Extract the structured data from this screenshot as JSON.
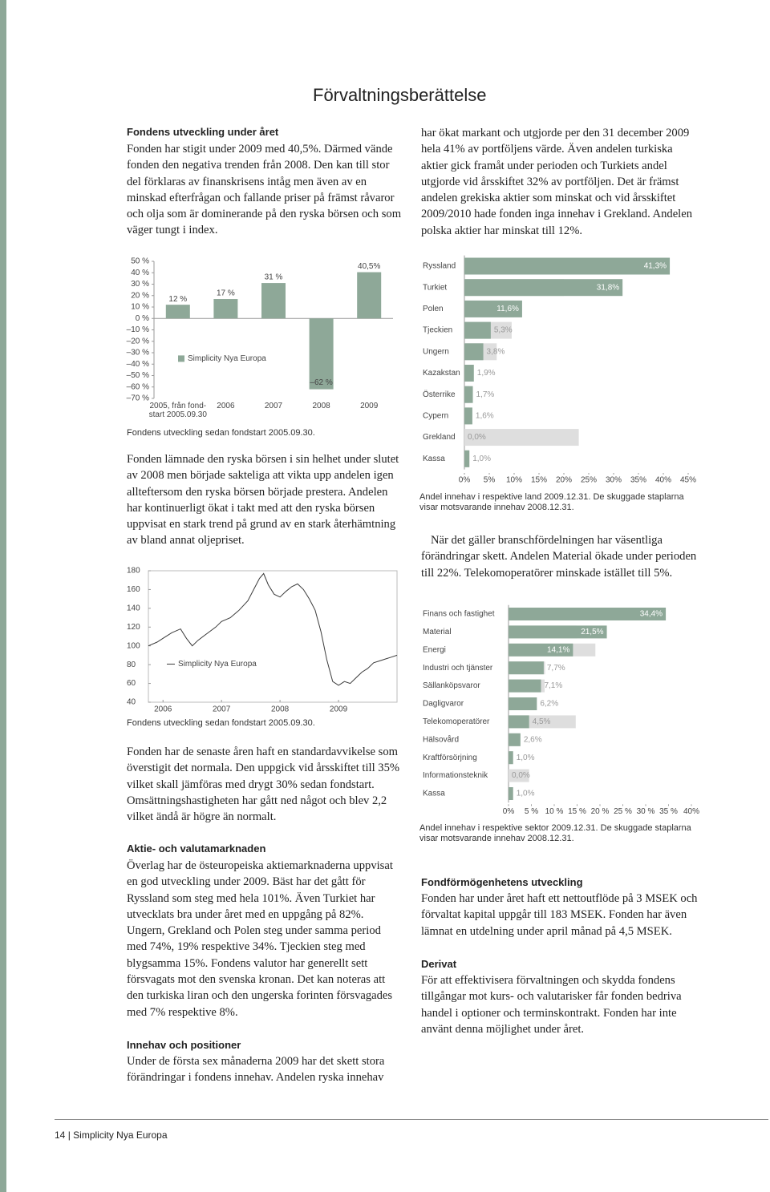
{
  "header": {
    "title": "Förvaltningsberättelse"
  },
  "sections": [
    {
      "heading": "Fondens utveckling under året",
      "text": "Fonden har stigit under 2009 med 40,5%. Därmed vände fonden den negativa trenden från 2008. Den kan till stor del förklaras av finanskrisens intåg men även av en minskad efterfrågan och fallande priser på främst råvaror och olja som är dominerande på den ryska börsen och som väger tungt i index."
    },
    {
      "text": "har ökat markant och utgjorde per den 31 december 2009 hela 41% av portföljens värde. Även andelen turkiska aktier gick framåt under perioden och Turkiets andel utgjorde vid årsskiftet 32% av portföljen. Det är främst andelen grekiska aktier som minskat och vid årsskiftet 2009/2010 hade fonden inga innehav i Grekland. Andelen polska aktier har minskat till 12%."
    },
    {
      "text": "Fonden lämnade den ryska börsen i sin helhet under slutet av 2008 men började sakteliga att vikta upp andelen igen alltefter­som den ryska börsen började prestera. Andelen har kontinuerligt ökat i takt med att den ryska börsen uppvisat en stark trend på grund av en stark återhämtning av bland annat oljepriset."
    },
    {
      "text": "När det gäller branschfördelningen har väsentliga förändringar skett. Andelen Material ökade under perioden till 22%. Telekomoperatörer minskade istället till 5%."
    },
    {
      "text": "Fonden har de senaste åren haft en standardavvikelse som överstigit det normala. Den uppgick vid årsskiftet till 35% vilket skall jämföras med drygt 30% sedan fondstart. Omsättningshastigheten har gått ned något och blev 2,2 vilket ändå är högre än normalt."
    },
    {
      "heading": "Aktie- och valutamarknaden",
      "text": "Överlag har de östeuropeiska aktiemarknaderna uppvisat en god utveckling under 2009. Bäst har det gått för Ryssland som steg med hela 101%. Även Turkiet har utvecklats bra under året med en uppgång på 82%. Ungern, Grekland och Polen steg under samma period med 74%, 19% respektive 34%. Tjeckien steg med blygsamma 15%. Fondens valutor har generellt sett försvagats mot den svenska kronan. Det kan noteras att den turkiska liran och den ungerska forinten försvagades med 7% respektive 8%."
    },
    {
      "heading": "Innehav och positioner",
      "text": "Under de första sex månaderna 2009 har det skett stora förändringar i fondens innehav. Andelen ryska innehav"
    },
    {
      "heading": "Fondförmögenhetens utveckling",
      "text": "Fonden har under året haft ett nettoutflöde på 3 MSEK och förvaltat kapital uppgår till 183 MSEK. Fonden har även lämnat en utdelning under april månad på 4,5 MSEK."
    },
    {
      "heading": "Derivat",
      "text": "För att effektivisera förvaltningen och skydda fondens tillgångar mot kurs- och valutarisker får fonden bedriva handel i optioner och terminskontrakt. Fonden har inte använt denna möjlighet under året."
    }
  ],
  "footer": {
    "page_number": "14",
    "publication": "Simplicity Nya Europa"
  },
  "chart_data": [
    {
      "type": "bar",
      "caption": "Fondens utveckling sedan fondstart 2005.09.30.",
      "categories": [
        "2005, från fond-start 2005.09.30",
        "2006",
        "2007",
        "2008",
        "2009"
      ],
      "series": [
        {
          "name": "Simplicity Nya Europa",
          "color": "#8ea898",
          "values": [
            12,
            17,
            31,
            -62,
            40.5
          ],
          "value_labels": [
            "12 %",
            "17 %",
            "31 %",
            "–62 %",
            "40,5%"
          ]
        }
      ],
      "ylim": [
        -70,
        50
      ],
      "yticks": [
        {
          "value": 50,
          "label": "50 %"
        },
        {
          "value": 40,
          "label": "40 %"
        },
        {
          "value": 30,
          "label": "30 %"
        },
        {
          "value": 20,
          "label": "20 %"
        },
        {
          "value": 10,
          "label": "10 %"
        },
        {
          "value": 0,
          "label": "0 %"
        },
        {
          "value": -10,
          "label": "–10 %"
        },
        {
          "value": -20,
          "label": "–20 %"
        },
        {
          "value": -30,
          "label": "–30 %"
        },
        {
          "value": -40,
          "label": "–40 %"
        },
        {
          "value": -50,
          "label": "–50 %"
        },
        {
          "value": -60,
          "label": "–60 %"
        },
        {
          "value": -70,
          "label": "–70 %"
        }
      ],
      "legend": "center-left"
    },
    {
      "type": "line",
      "caption": "Fondens utveckling sedan fondstart 2005.09.30.",
      "x": [
        2005.75,
        2005.9,
        2006.0,
        2006.15,
        2006.3,
        2006.4,
        2006.5,
        2006.6,
        2006.75,
        2006.9,
        2007.0,
        2007.15,
        2007.3,
        2007.45,
        2007.55,
        2007.65,
        2007.72,
        2007.8,
        2007.9,
        2008.0,
        2008.1,
        2008.2,
        2008.3,
        2008.4,
        2008.5,
        2008.6,
        2008.7,
        2008.8,
        2008.9,
        2009.0,
        2009.1,
        2009.2,
        2009.3,
        2009.4,
        2009.5,
        2009.6,
        2009.7,
        2009.8,
        2009.9,
        2010.0
      ],
      "series": [
        {
          "name": "Simplicity Nya Europa",
          "color": "#3a3a3a",
          "values": [
            100,
            104,
            108,
            114,
            118,
            108,
            100,
            106,
            113,
            120,
            126,
            130,
            138,
            148,
            160,
            172,
            177,
            165,
            155,
            152,
            158,
            163,
            166,
            160,
            150,
            138,
            115,
            85,
            62,
            58,
            62,
            60,
            66,
            72,
            76,
            82,
            84,
            86,
            88,
            90
          ]
        }
      ],
      "xlim": [
        2005.75,
        2010
      ],
      "xticks": [
        2006,
        2007,
        2008,
        2009
      ],
      "ylim": [
        40,
        180
      ],
      "yticks": [
        40,
        60,
        80,
        100,
        120,
        140,
        160,
        180
      ],
      "legend": "center-left"
    },
    {
      "type": "barh",
      "caption": "Andel innehav i respektive land 2009.12.31. De skuggade staplarna visar motsvarande innehav 2008.12.31.",
      "categories": [
        "Ryssland",
        "Turkiet",
        "Polen",
        "Tjeckien",
        "Ungern",
        "Kazakstan",
        "Österrike",
        "Cypern",
        "Grekland",
        "Kassa"
      ],
      "series": [
        {
          "color": "#8ea898",
          "values": [
            41.3,
            31.8,
            11.6,
            5.3,
            3.8,
            1.9,
            1.7,
            1.6,
            0.0,
            1.0
          ],
          "value_labels": [
            "41,3%",
            "31,8%",
            "11,6%",
            "5,3%",
            "3,8%",
            "1,9%",
            "1,7%",
            "1,6%",
            "0,0%",
            "1,0%"
          ]
        },
        {
          "color": "#dedede",
          "values": [
            38,
            20,
            10,
            9.5,
            6.5,
            1.0,
            1.0,
            1.0,
            23,
            1.0
          ]
        }
      ],
      "xlim": [
        0,
        45
      ],
      "xticks": [
        {
          "value": 0,
          "label": "0%"
        },
        {
          "value": 5,
          "label": "5%"
        },
        {
          "value": 10,
          "label": "10%"
        },
        {
          "value": 15,
          "label": "15%"
        },
        {
          "value": 20,
          "label": "20%"
        },
        {
          "value": 25,
          "label": "25%"
        },
        {
          "value": 30,
          "label": "30%"
        },
        {
          "value": 35,
          "label": "35%"
        },
        {
          "value": 40,
          "label": "40%"
        },
        {
          "value": 45,
          "label": "45%"
        }
      ]
    },
    {
      "type": "barh",
      "caption": "Andel innehav i respektive sektor 2009.12.31. De skuggade staplarna visar motsvarande innehav 2008.12.31.",
      "categories": [
        "Finans och fastighet",
        "Material",
        "Energi",
        "Industri och tjänster",
        "Sällanköpsvaror",
        "Dagligvaror",
        "Telekomoperatörer",
        "Hälsovård",
        "Kraftförsörjning",
        "Informationsteknik",
        "Kassa"
      ],
      "series": [
        {
          "color": "#8ea898",
          "values": [
            34.4,
            21.5,
            14.1,
            7.7,
            7.1,
            6.2,
            4.5,
            2.6,
            1.0,
            0.0,
            1.0
          ],
          "value_labels": [
            "34,4%",
            "21,5%",
            "14,1%",
            "7,7%",
            "7,1%",
            "6,2%",
            "4,5%",
            "2,6%",
            "1,0%",
            "0,0%",
            "1,0%"
          ]
        },
        {
          "color": "#dedede",
          "values": [
            30,
            15,
            19,
            8,
            7.9,
            5,
            14.7,
            2.6,
            1.0,
            4.5,
            1.0
          ]
        }
      ],
      "xlim": [
        0,
        40
      ],
      "xticks": [
        {
          "value": 0,
          "label": "0%"
        },
        {
          "value": 5,
          "label": "5 %"
        },
        {
          "value": 10,
          "label": "10 %"
        },
        {
          "value": 15,
          "label": "15 %"
        },
        {
          "value": 20,
          "label": "20 %"
        },
        {
          "value": 25,
          "label": "25 %"
        },
        {
          "value": 30,
          "label": "30 %"
        },
        {
          "value": 35,
          "label": "35 %"
        },
        {
          "value": 40,
          "label": "40%"
        }
      ]
    }
  ]
}
